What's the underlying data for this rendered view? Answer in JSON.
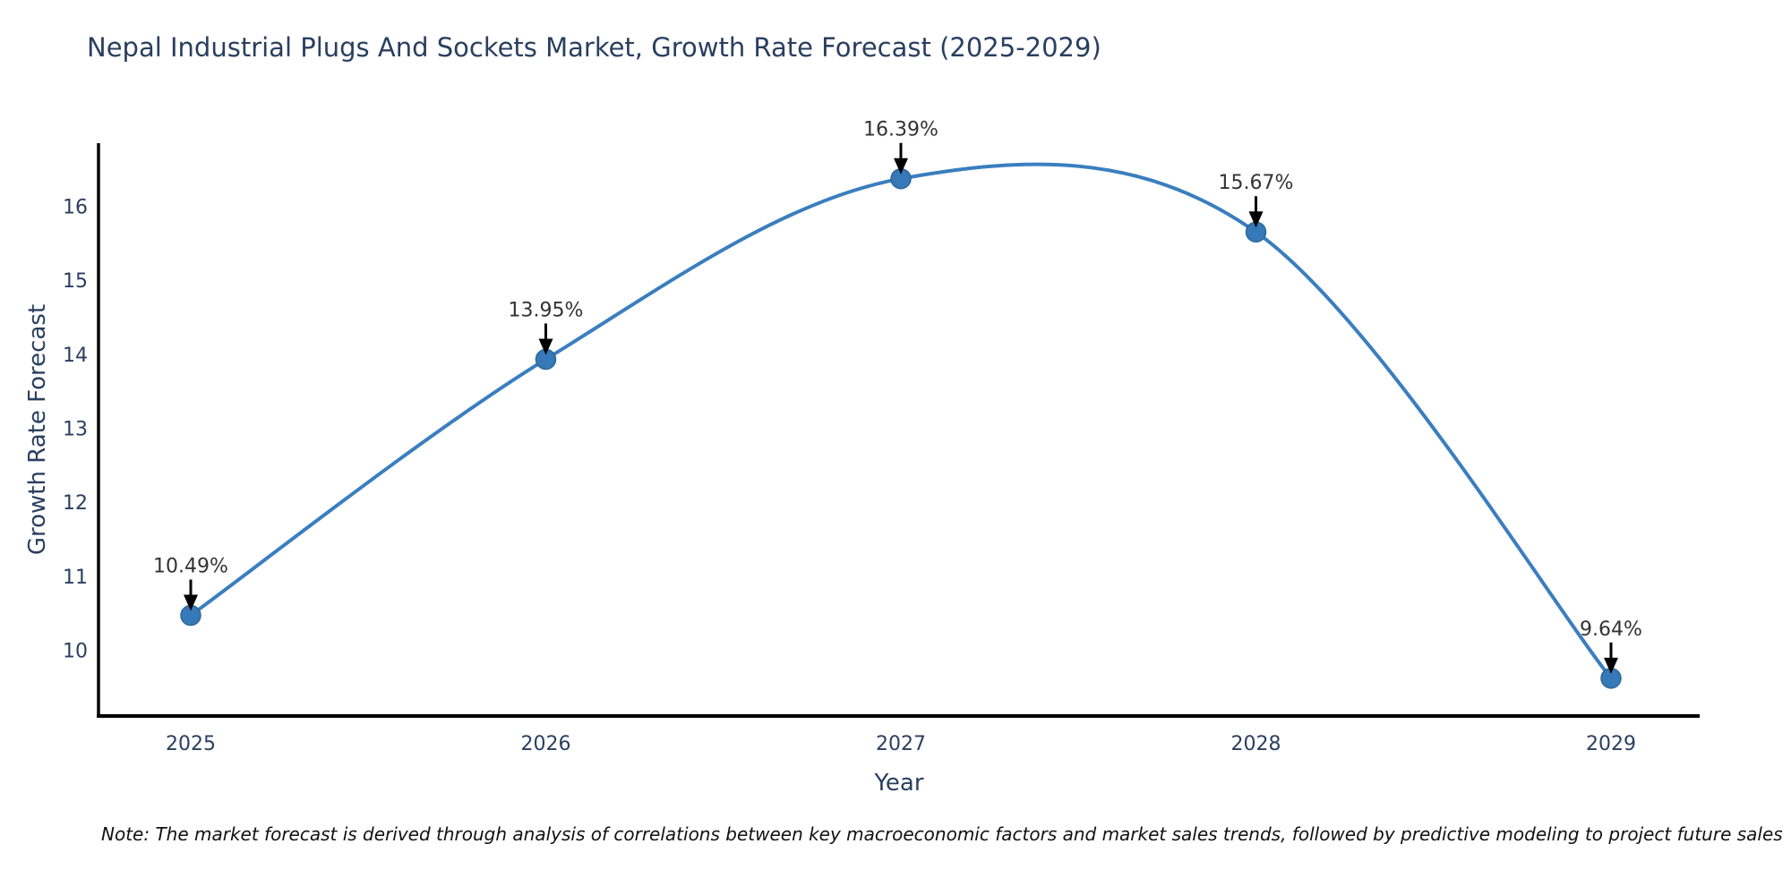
{
  "page": {
    "note": "Note: The market forecast is derived through analysis of correlations between key macroeconomic factors and market sales trends, followed by predictive modeling to project future sales"
  },
  "chart_data": {
    "type": "line",
    "title": "Nepal Industrial Plugs And Sockets Market, Growth Rate Forecast (2025-2029)",
    "xlabel": "Year",
    "ylabel": "Growth Rate Forecast",
    "categories": [
      "2025",
      "2026",
      "2027",
      "2028",
      "2029"
    ],
    "values": [
      10.49,
      13.95,
      16.39,
      15.67,
      9.64
    ],
    "point_labels": [
      "10.49%",
      "13.95%",
      "16.39%",
      "15.67%",
      "9.64%"
    ],
    "yticks": [
      10,
      11,
      12,
      13,
      14,
      15,
      16
    ],
    "ylim": [
      9.13,
      16.87
    ],
    "line_shape": "spline",
    "grid": false,
    "legend": "none",
    "colors": {
      "line": "#3a7ebf",
      "marker_fill": "#3579b8",
      "marker_edge": "#2f6894",
      "axis": "#000000",
      "title_text": "#2a3f5f",
      "tick_text": "#2a3f5f",
      "annotation_text": "#333333",
      "arrow": "#000000",
      "background": "#ffffff"
    }
  }
}
